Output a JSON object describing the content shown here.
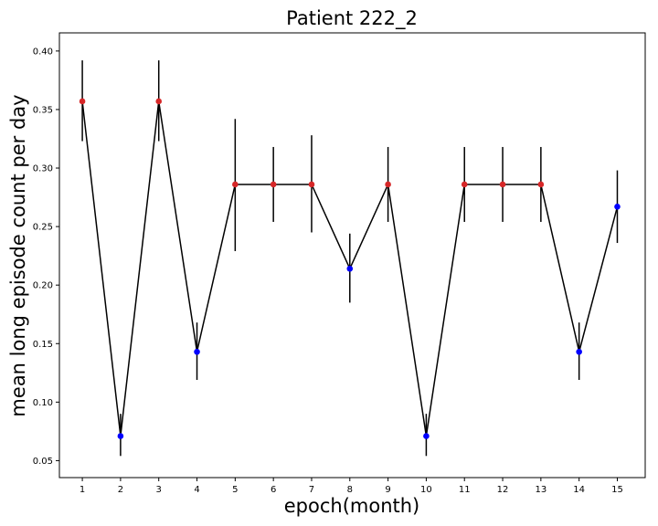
{
  "chart_data": {
    "type": "line",
    "title": "Patient 222_2",
    "xlabel": "epoch(month)",
    "ylabel": "mean long episode count per day",
    "xlim": [
      0.4,
      15.73
    ],
    "ylim": [
      0.0355,
      0.4155
    ],
    "x_ticks": [
      "1",
      "2",
      "3",
      "4",
      "5",
      "6",
      "7",
      "8",
      "9",
      "10",
      "11",
      "12",
      "13",
      "14",
      "15"
    ],
    "y_ticks": [
      "0.05",
      "0.10",
      "0.15",
      "0.20",
      "0.25",
      "0.30",
      "0.35",
      "0.40"
    ],
    "grid": false,
    "points": [
      {
        "x": 1,
        "y": 0.357,
        "err_low": 0.323,
        "err_high": 0.392,
        "marker": "red"
      },
      {
        "x": 2,
        "y": 0.071,
        "err_low": 0.054,
        "err_high": 0.09,
        "marker": "blue"
      },
      {
        "x": 3,
        "y": 0.357,
        "err_low": 0.323,
        "err_high": 0.392,
        "marker": "red"
      },
      {
        "x": 4,
        "y": 0.143,
        "err_low": 0.119,
        "err_high": 0.168,
        "marker": "blue"
      },
      {
        "x": 5,
        "y": 0.286,
        "err_low": 0.229,
        "err_high": 0.342,
        "marker": "red"
      },
      {
        "x": 6,
        "y": 0.286,
        "err_low": 0.254,
        "err_high": 0.318,
        "marker": "red"
      },
      {
        "x": 7,
        "y": 0.286,
        "err_low": 0.245,
        "err_high": 0.328,
        "marker": "red"
      },
      {
        "x": 8,
        "y": 0.214,
        "err_low": 0.185,
        "err_high": 0.244,
        "marker": "blue"
      },
      {
        "x": 9,
        "y": 0.286,
        "err_low": 0.254,
        "err_high": 0.318,
        "marker": "red"
      },
      {
        "x": 10,
        "y": 0.071,
        "err_low": 0.054,
        "err_high": 0.09,
        "marker": "blue"
      },
      {
        "x": 11,
        "y": 0.286,
        "err_low": 0.254,
        "err_high": 0.318,
        "marker": "red"
      },
      {
        "x": 12,
        "y": 0.286,
        "err_low": 0.254,
        "err_high": 0.318,
        "marker": "red"
      },
      {
        "x": 13,
        "y": 0.286,
        "err_low": 0.254,
        "err_high": 0.318,
        "marker": "red"
      },
      {
        "x": 14,
        "y": 0.143,
        "err_low": 0.119,
        "err_high": 0.168,
        "marker": "blue"
      },
      {
        "x": 15,
        "y": 0.267,
        "err_low": 0.236,
        "err_high": 0.298,
        "marker": "blue"
      }
    ],
    "colors": {
      "line": "#000000",
      "errorbar": "#000000",
      "red": "#d62728",
      "blue": "#0000ff"
    }
  }
}
